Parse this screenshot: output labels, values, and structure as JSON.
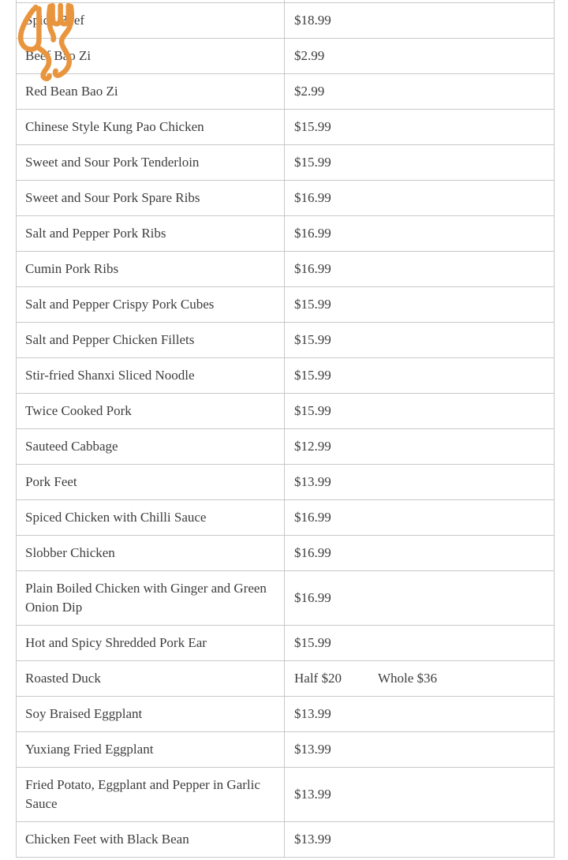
{
  "page": {
    "background_color": "#ffffff"
  },
  "decoration": {
    "cutlery_icon": "crossed-fork-and-knife",
    "cutlery_icon_color": "#E9953E"
  },
  "menu_table": {
    "border_color": "#c8c8c8",
    "text_color": "#3d3d3d",
    "columns": [
      "dish",
      "price"
    ],
    "rows": [
      {
        "name": "Spicy Beef",
        "price": "$18.99"
      },
      {
        "name": "Beef Bao Zi",
        "price": "$2.99"
      },
      {
        "name": "Red Bean Bao Zi",
        "price": "$2.99"
      },
      {
        "name": "Chinese Style Kung Pao Chicken",
        "price": "$15.99"
      },
      {
        "name": "Sweet and Sour Pork Tenderloin",
        "price": "$15.99"
      },
      {
        "name": "Sweet and Sour Pork Spare Ribs",
        "price": "$16.99"
      },
      {
        "name": "Salt and Pepper Pork Ribs",
        "price": "$16.99"
      },
      {
        "name": "Cumin Pork Ribs",
        "price": "$16.99"
      },
      {
        "name": "Salt and Pepper Crispy Pork Cubes",
        "price": "$15.99"
      },
      {
        "name": "Salt and Pepper Chicken Fillets",
        "price": "$15.99"
      },
      {
        "name": "Stir-fried Shanxi Sliced Noodle",
        "price": "$15.99"
      },
      {
        "name": "Twice Cooked Pork",
        "price": "$15.99"
      },
      {
        "name": "Sauteed Cabbage",
        "price": "$12.99"
      },
      {
        "name": "Pork Feet",
        "price": "$13.99"
      },
      {
        "name": "Spiced Chicken with Chilli Sauce",
        "price": "$16.99"
      },
      {
        "name": "Slobber Chicken",
        "price": "$16.99"
      },
      {
        "name": "Plain Boiled Chicken with Ginger and Green Onion Dip",
        "price": "$16.99"
      },
      {
        "name": "Hot and Spicy Shredded Pork Ear",
        "price": "$15.99"
      },
      {
        "name": "Roasted Duck",
        "price": "Half $20",
        "price2": "Whole $36"
      },
      {
        "name": "Soy Braised Eggplant",
        "price": "$13.99"
      },
      {
        "name": "Yuxiang Fried Eggplant",
        "price": "$13.99"
      },
      {
        "name": "Fried Potato, Eggplant and Pepper in Garlic Sauce",
        "price": "$13.99"
      },
      {
        "name": "Chicken Feet with Black Bean",
        "price": "$13.99"
      }
    ]
  }
}
